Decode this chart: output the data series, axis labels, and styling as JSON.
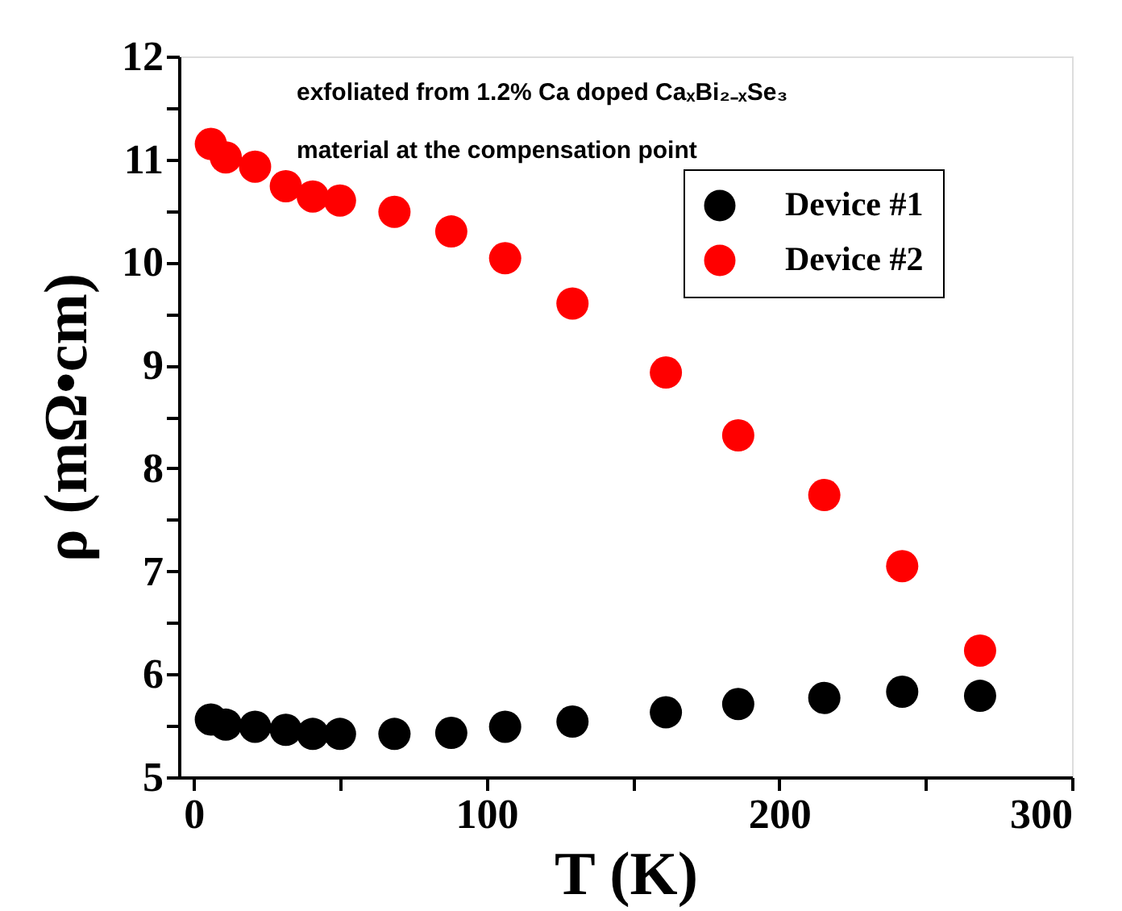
{
  "chart_data": {
    "type": "scatter",
    "xlabel": "T (K)",
    "ylabel": "ρ (mΩ•cm)",
    "annotations": [
      "exfoliated from 1.2% Ca doped CaₓBi₂₋ₓSe₃",
      "material at the compensation point"
    ],
    "x": [
      5.9,
      11,
      21,
      31.5,
      40.7,
      50,
      68.6,
      88,
      106.4,
      129.4,
      161.3,
      186,
      215.4,
      242,
      268.6
    ],
    "series": [
      {
        "name": "Device #1",
        "color": "#000000",
        "values": [
          5.56,
          5.51,
          5.49,
          5.46,
          5.42,
          5.42,
          5.42,
          5.43,
          5.49,
          5.54,
          5.63,
          5.71,
          5.77,
          5.83,
          5.79
        ]
      },
      {
        "name": "Device #2",
        "color": "#ff0000",
        "values": [
          11.15,
          11.02,
          10.93,
          10.74,
          10.64,
          10.6,
          10.49,
          10.3,
          10.04,
          9.6,
          8.93,
          8.32,
          7.74,
          7.05,
          6.23
        ]
      }
    ],
    "xlim": [
      -5,
      300
    ],
    "ylim": [
      5,
      12
    ],
    "xticks": [
      0,
      {
        "value": 50,
        "label": null
      },
      100,
      {
        "value": 150,
        "label": null
      },
      200,
      {
        "value": 250,
        "label": null
      },
      300
    ],
    "yticks": [
      5,
      {
        "value": 5.5,
        "label": null
      },
      6,
      {
        "value": 6.5,
        "label": null
      },
      7,
      {
        "value": 7.5,
        "label": null
      },
      8,
      {
        "value": 8.5,
        "label": null
      },
      9,
      {
        "value": 9.5,
        "label": null
      },
      10,
      {
        "value": 10.5,
        "label": null
      },
      11,
      {
        "value": 11.5,
        "label": null
      },
      12
    ],
    "marker": "circle",
    "legend": "top right",
    "grid": false
  }
}
